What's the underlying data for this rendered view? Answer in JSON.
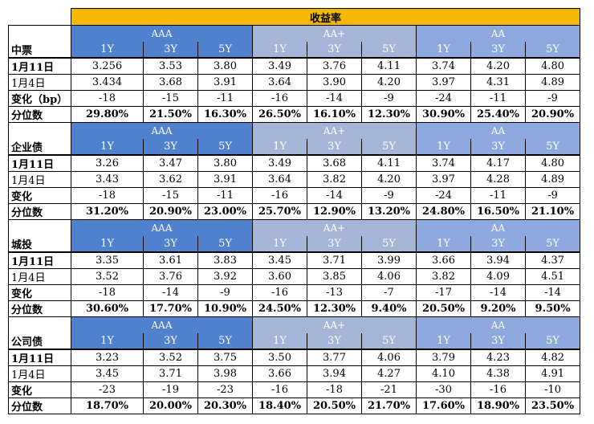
{
  "title": "收益率",
  "groups": [
    "AAA",
    "AA+",
    "AA"
  ],
  "tenors": [
    "1Y",
    "3Y",
    "5Y"
  ],
  "sections": [
    {
      "name": "中票",
      "rows": [
        {
          "label": "1月11日",
          "bold": true,
          "values": [
            "3.256",
            "3.53",
            "3.80",
            "3.49",
            "3.76",
            "4.11",
            "3.74",
            "4.20",
            "4.80"
          ]
        },
        {
          "label": "1月4日",
          "bold": false,
          "values": [
            "3.434",
            "3.68",
            "3.91",
            "3.64",
            "3.90",
            "4.20",
            "3.97",
            "4.31",
            "4.89"
          ]
        },
        {
          "label": "变化（bp）",
          "bold": true,
          "values": [
            "-18",
            "-15",
            "-11",
            "-16",
            "-14",
            "-9",
            "-24",
            "-11",
            "-9"
          ]
        },
        {
          "label": "分位数",
          "bold": true,
          "values": [
            "29.80%",
            "21.50%",
            "16.30%",
            "26.50%",
            "16.10%",
            "12.30%",
            "30.90%",
            "25.40%",
            "20.90%"
          ]
        }
      ]
    },
    {
      "name": "企业债",
      "rows": [
        {
          "label": "1月11日",
          "bold": true,
          "values": [
            "3.26",
            "3.47",
            "3.80",
            "3.49",
            "3.68",
            "4.11",
            "3.74",
            "4.17",
            "4.80"
          ]
        },
        {
          "label": "1月4日",
          "bold": false,
          "values": [
            "3.43",
            "3.62",
            "3.91",
            "3.64",
            "3.82",
            "4.20",
            "3.97",
            "4.28",
            "4.89"
          ]
        },
        {
          "label": "变化",
          "bold": true,
          "values": [
            "-18",
            "-15",
            "-11",
            "-16",
            "-14",
            "-9",
            "-24",
            "-11",
            "-9"
          ]
        },
        {
          "label": "分位数",
          "bold": true,
          "values": [
            "31.20%",
            "20.90%",
            "23.00%",
            "25.70%",
            "12.90%",
            "13.20%",
            "24.80%",
            "16.50%",
            "21.10%"
          ]
        }
      ]
    },
    {
      "name": "城投",
      "rows": [
        {
          "label": "1月11日",
          "bold": true,
          "values": [
            "3.35",
            "3.61",
            "3.83",
            "3.45",
            "3.71",
            "3.99",
            "3.66",
            "3.94",
            "4.37"
          ]
        },
        {
          "label": "1月4日",
          "bold": false,
          "values": [
            "3.52",
            "3.76",
            "3.92",
            "3.60",
            "3.85",
            "4.06",
            "3.82",
            "4.09",
            "4.51"
          ]
        },
        {
          "label": "变化",
          "bold": true,
          "values": [
            "-18",
            "-14",
            "-9",
            "-16",
            "-13",
            "-7",
            "-17",
            "-14",
            "-14"
          ]
        },
        {
          "label": "分位数",
          "bold": true,
          "values": [
            "30.60%",
            "17.70%",
            "10.90%",
            "24.50%",
            "12.30%",
            "9.40%",
            "20.50%",
            "9.20%",
            "9.50%"
          ]
        }
      ]
    },
    {
      "name": "公司债",
      "rows": [
        {
          "label": "1月11日",
          "bold": true,
          "values": [
            "3.23",
            "3.52",
            "3.75",
            "3.50",
            "3.77",
            "4.06",
            "3.79",
            "4.23",
            "4.82"
          ]
        },
        {
          "label": "1月4日",
          "bold": false,
          "values": [
            "3.45",
            "3.71",
            "3.98",
            "3.66",
            "3.94",
            "4.27",
            "4.10",
            "4.38",
            "4.91"
          ]
        },
        {
          "label": "变化",
          "bold": true,
          "values": [
            "-23",
            "-19",
            "-23",
            "-16",
            "-18",
            "-21",
            "-30",
            "-16",
            "-10"
          ]
        },
        {
          "label": "分位数",
          "bold": true,
          "values": [
            "18.70%",
            "20.00%",
            "20.30%",
            "18.40%",
            "20.50%",
            "21.70%",
            "17.60%",
            "18.90%",
            "23.50%"
          ]
        }
      ]
    }
  ],
  "colors": {
    "title_bg": "#f5b800",
    "aaa_bg": "#4f81cf",
    "aa_plus_bg": "#a4b5d8",
    "aa_bg": "#8ea9dd"
  }
}
